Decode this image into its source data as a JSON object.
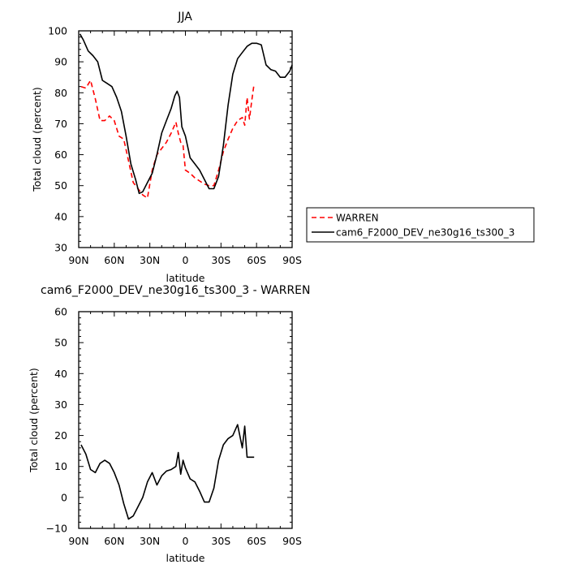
{
  "chart_data": [
    {
      "type": "line",
      "title": "JJA",
      "xlabel": "latitude",
      "ylabel": "Total cloud (percent)",
      "xlim": [
        90,
        -90
      ],
      "ylim": [
        30,
        100
      ],
      "x_tick_labels": [
        "90N",
        "60N",
        "30N",
        "0",
        "30S",
        "60S",
        "90S"
      ],
      "y_tick_labels": [
        "30",
        "40",
        "50",
        "60",
        "70",
        "80",
        "90",
        "100"
      ],
      "legend": "right",
      "series": [
        {
          "name": "WARREN",
          "color": "#ff0000",
          "style": "dashed",
          "x": [
            88,
            84,
            80,
            76,
            72,
            68,
            64,
            60,
            56,
            52,
            48,
            44,
            40,
            36,
            32,
            28,
            24,
            20,
            16,
            12,
            8,
            6,
            4,
            2,
            0,
            -4,
            -8,
            -12,
            -16,
            -20,
            -24,
            -28,
            -32,
            -36,
            -40,
            -44,
            -48,
            -50,
            -52,
            -54,
            -56,
            -58
          ],
          "y": [
            82,
            81.5,
            84,
            78,
            71,
            71,
            72.5,
            71,
            66,
            65,
            58,
            51,
            49,
            47,
            46,
            55,
            60,
            62,
            64,
            67,
            70.5,
            67,
            64,
            63,
            55,
            54,
            52.5,
            51.5,
            50.5,
            50,
            50,
            55,
            61,
            65,
            68.5,
            71,
            72,
            69.5,
            78.5,
            71.5,
            77.5,
            83
          ]
        },
        {
          "name": "cam6_F2000_DEV_ne30g16_ts300_3",
          "color": "#000000",
          "style": "solid",
          "x": [
            89,
            86,
            82,
            78,
            74,
            70,
            66,
            62,
            58,
            54,
            50,
            46,
            42,
            39,
            36,
            32,
            28,
            24,
            20,
            16,
            12,
            9,
            7,
            5,
            3,
            0,
            -4,
            -8,
            -12,
            -16,
            -20,
            -24,
            -28,
            -32,
            -36,
            -40,
            -44,
            -48,
            -52,
            -56,
            -60,
            -64,
            -68,
            -72,
            -76,
            -80,
            -84,
            -88,
            -90
          ],
          "y": [
            99,
            97,
            93.5,
            92,
            90,
            84,
            83,
            82,
            78.5,
            74,
            66,
            57,
            52,
            47.5,
            48,
            51,
            54,
            60,
            67,
            71,
            75,
            79,
            80.5,
            78.5,
            69,
            66,
            59,
            57,
            55,
            52,
            49,
            49,
            53,
            63,
            76,
            86,
            91,
            93,
            95,
            96,
            96,
            95.5,
            89,
            87.5,
            87,
            85,
            85,
            87,
            89
          ]
        }
      ]
    },
    {
      "type": "line",
      "title": "cam6_F2000_DEV_ne30g16_ts300_3 - WARREN",
      "xlabel": "latitude",
      "ylabel": "Total cloud (percent)",
      "xlim": [
        90,
        -90
      ],
      "ylim": [
        -10,
        60
      ],
      "x_tick_labels": [
        "90N",
        "60N",
        "30N",
        "0",
        "30S",
        "60S",
        "90S"
      ],
      "y_tick_labels": [
        "−10",
        "0",
        "10",
        "20",
        "30",
        "40",
        "50",
        "60"
      ],
      "series": [
        {
          "color": "#000000",
          "style": "solid",
          "x": [
            88,
            84,
            80,
            76,
            72,
            68,
            64,
            60,
            56,
            52,
            48,
            44,
            40,
            36,
            32,
            28,
            24,
            20,
            16,
            12,
            8,
            6,
            4,
            2,
            0,
            -4,
            -8,
            -12,
            -16,
            -20,
            -24,
            -28,
            -32,
            -36,
            -40,
            -44,
            -48,
            -50,
            -52,
            -54,
            -56,
            -58
          ],
          "y": [
            17,
            14,
            9,
            8,
            11,
            12,
            11,
            8,
            4,
            -2,
            -7,
            -6,
            -3,
            0,
            5,
            8,
            4,
            7,
            8.5,
            9,
            10,
            14.5,
            7.5,
            12,
            9.5,
            6,
            5,
            2,
            -1.5,
            -1.5,
            3,
            12,
            17,
            19,
            20,
            23.5,
            16,
            23,
            13,
            13,
            13,
            13
          ]
        }
      ]
    }
  ]
}
